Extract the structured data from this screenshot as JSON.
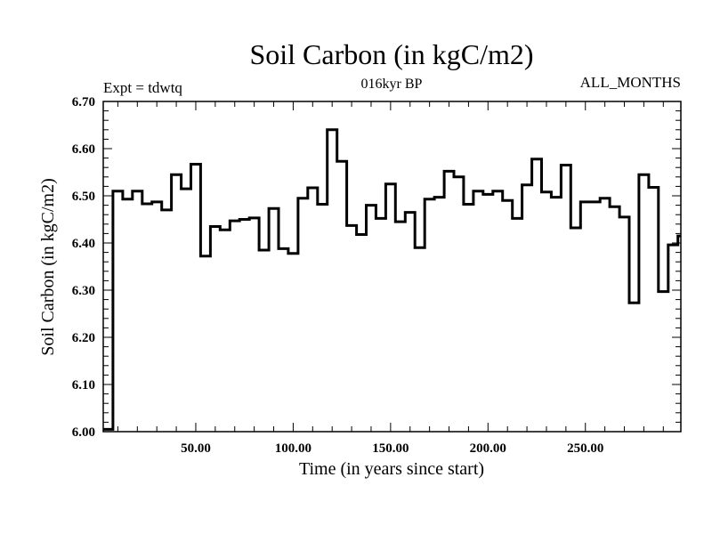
{
  "chart_data": {
    "type": "line",
    "style": "step",
    "title": "Soil Carbon (in kgC/m2)",
    "subtitle": "016kyr BP",
    "left_label": "Expt = tdwtq",
    "right_label": "ALL_MONTHS",
    "xlabel": "Time (in years since start)",
    "ylabel": "Soil Carbon (in kgC/m2)",
    "xlim": [
      2.5,
      299
    ],
    "ylim": [
      6.0,
      6.7
    ],
    "xticks": [
      50,
      100,
      150,
      200,
      250
    ],
    "xtick_labels": [
      "50.00",
      "100.00",
      "150.00",
      "200.00",
      "250.00"
    ],
    "yticks": [
      6.0,
      6.1,
      6.2,
      6.3,
      6.4,
      6.5,
      6.6,
      6.7
    ],
    "ytick_labels": [
      "6.00",
      "6.10",
      "6.20",
      "6.30",
      "6.40",
      "6.50",
      "6.60",
      "6.70"
    ],
    "grid": false,
    "line_color": "#000000",
    "step_width": 5,
    "series": [
      {
        "name": "Soil Carbon",
        "x": [
          5,
          10,
          15,
          20,
          25,
          30,
          35,
          40,
          45,
          50,
          55,
          60,
          65,
          70,
          75,
          80,
          85,
          90,
          95,
          100,
          105,
          110,
          115,
          120,
          125,
          130,
          135,
          140,
          145,
          150,
          155,
          160,
          165,
          170,
          175,
          180,
          185,
          190,
          195,
          200,
          205,
          210,
          215,
          220,
          225,
          230,
          235,
          240,
          245,
          250,
          255,
          260,
          265,
          270,
          275,
          280,
          285,
          290,
          295,
          300
        ],
        "values": [
          6.005,
          6.51,
          6.493,
          6.51,
          6.483,
          6.487,
          6.47,
          6.545,
          6.515,
          6.567,
          6.372,
          6.435,
          6.428,
          6.447,
          6.45,
          6.453,
          6.385,
          6.473,
          6.388,
          6.378,
          6.495,
          6.517,
          6.482,
          6.64,
          6.573,
          6.437,
          6.418,
          6.48,
          6.452,
          6.525,
          6.445,
          6.465,
          6.39,
          6.493,
          6.497,
          6.552,
          6.54,
          6.482,
          6.51,
          6.503,
          6.51,
          6.49,
          6.452,
          6.523,
          6.578,
          6.508,
          6.497,
          6.565,
          6.432,
          6.487,
          6.487,
          6.495,
          6.477,
          6.455,
          6.273,
          6.545,
          6.518,
          6.297,
          6.396,
          6.415
        ]
      }
    ]
  }
}
